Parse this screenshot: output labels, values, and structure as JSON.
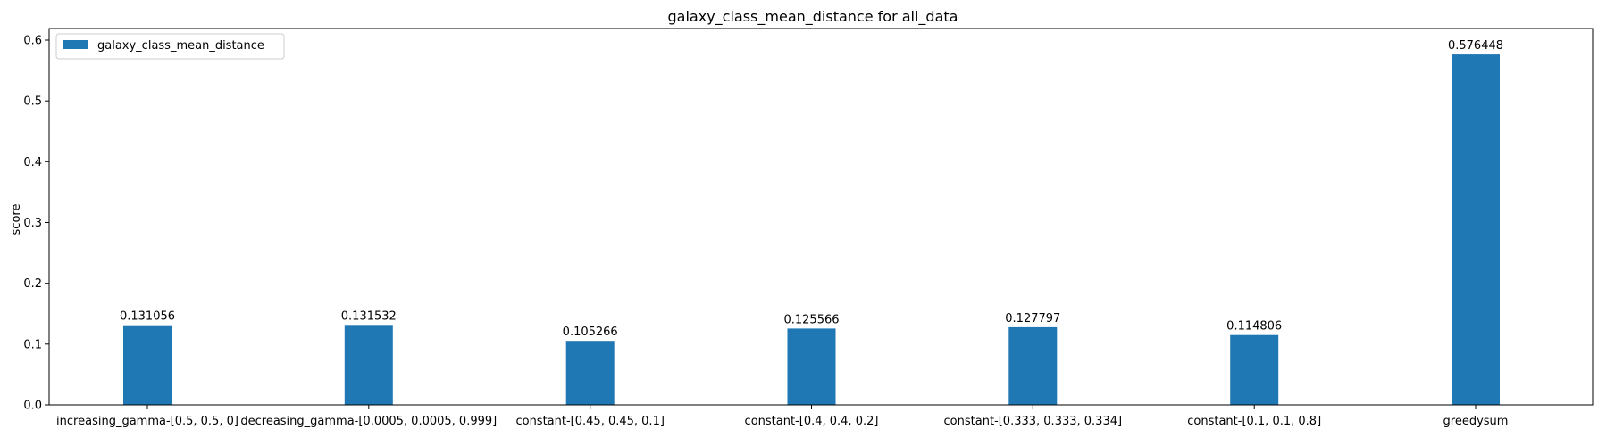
{
  "chart_data": {
    "type": "bar",
    "title": "galaxy_class_mean_distance for all_data",
    "xlabel": "",
    "ylabel": "score",
    "ylim": [
      0,
      0.6
    ],
    "yticks": [
      "0.0",
      "0.1",
      "0.2",
      "0.3",
      "0.4",
      "0.5",
      "0.6"
    ],
    "categories": [
      "increasing_gamma-[0.5, 0.5, 0]",
      "decreasing_gamma-[0.0005, 0.0005, 0.999]",
      "constant-[0.45, 0.45, 0.1]",
      "constant-[0.4, 0.4, 0.2]",
      "constant-[0.333, 0.333, 0.334]",
      "constant-[0.1, 0.1, 0.8]",
      "greedysum"
    ],
    "series": [
      {
        "name": "galaxy_class_mean_distance",
        "color": "#1f77b4",
        "values": [
          0.131056,
          0.131532,
          0.105266,
          0.125566,
          0.127797,
          0.114806,
          0.576448
        ],
        "labels": [
          "0.131056",
          "0.131532",
          "0.105266",
          "0.125566",
          "0.127797",
          "0.114806",
          "0.576448"
        ]
      }
    ],
    "legend_position": "top-left",
    "grid": false
  }
}
